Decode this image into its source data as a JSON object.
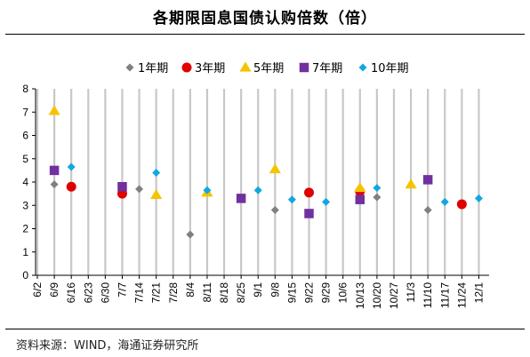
{
  "title": "各期限固息国债认购倍数（倍）",
  "source": "资料来源：WIND，海通证券研究所",
  "chart_data": {
    "type": "scatter",
    "title": "各期限固息国债认购倍数（倍）",
    "xlabel": "",
    "ylabel": "",
    "ylim": [
      0,
      8
    ],
    "yticks": [
      "0",
      "1",
      "2",
      "3",
      "4",
      "5",
      "6",
      "7",
      "8"
    ],
    "categories": [
      "6/2",
      "6/9",
      "6/16",
      "6/23",
      "6/30",
      "7/7",
      "7/14",
      "7/21",
      "7/28",
      "8/4",
      "8/11",
      "8/18",
      "8/25",
      "9/1",
      "9/8",
      "9/15",
      "9/22",
      "9/29",
      "10/6",
      "10/13",
      "10/20",
      "10/27",
      "11/3",
      "11/10",
      "11/17",
      "11/24",
      "12/1"
    ],
    "grid": true,
    "legend_position": "top",
    "series": [
      {
        "name": "1年期",
        "color": "#808080",
        "marker": "diamond",
        "points": [
          [
            "6/9",
            3.9
          ],
          [
            "7/14",
            3.7
          ],
          [
            "8/4",
            1.75
          ],
          [
            "9/8",
            2.8
          ],
          [
            "10/20",
            3.35
          ],
          [
            "11/10",
            2.8
          ]
        ]
      },
      {
        "name": "3年期",
        "color": "#e00000",
        "marker": "circle",
        "points": [
          [
            "6/16",
            3.8
          ],
          [
            "7/7",
            3.5
          ],
          [
            "9/22",
            3.55
          ],
          [
            "10/13",
            3.6
          ],
          [
            "11/24",
            3.05
          ]
        ]
      },
      {
        "name": "5年期",
        "color": "#f5c400",
        "marker": "triangle",
        "points": [
          [
            "6/9",
            7.05
          ],
          [
            "7/21",
            3.45
          ],
          [
            "8/11",
            3.55
          ],
          [
            "9/8",
            4.55
          ],
          [
            "10/13",
            3.75
          ],
          [
            "11/3",
            3.9
          ]
        ]
      },
      {
        "name": "7年期",
        "color": "#7030a0",
        "marker": "square",
        "points": [
          [
            "6/9",
            4.5
          ],
          [
            "7/7",
            3.8
          ],
          [
            "8/25",
            3.3
          ],
          [
            "9/22",
            2.65
          ],
          [
            "10/13",
            3.25
          ],
          [
            "11/10",
            4.1
          ]
        ]
      },
      {
        "name": "10年期",
        "color": "#10a8e0",
        "marker": "diamond",
        "points": [
          [
            "6/16",
            4.65
          ],
          [
            "7/21",
            4.4
          ],
          [
            "8/11",
            3.65
          ],
          [
            "9/1",
            3.65
          ],
          [
            "9/15",
            3.25
          ],
          [
            "9/29",
            3.15
          ],
          [
            "10/20",
            3.75
          ],
          [
            "11/17",
            3.15
          ],
          [
            "12/1",
            3.3
          ]
        ]
      }
    ]
  }
}
